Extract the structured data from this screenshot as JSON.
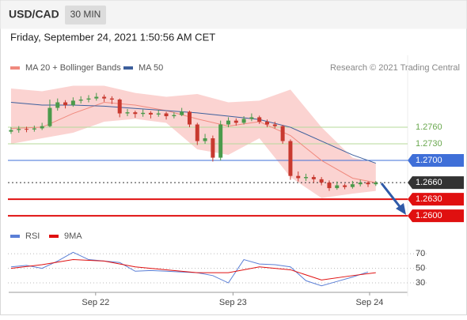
{
  "header": {
    "symbol": "USD/CAD",
    "interval": "30 MIN",
    "datetime": "Friday, September 24, 2021 1:50:56 AM CET"
  },
  "chart_data": [
    {
      "type": "candlestick",
      "legend": [
        "MA 20 + Bollinger Bands",
        "MA 50"
      ],
      "credit": "Research © 2021 Trading Central",
      "xlim": [
        -0.4,
        51.1
      ],
      "xticks": [
        {
          "value": 10.9,
          "label": "Sep 22"
        },
        {
          "value": 28.6,
          "label": "Sep 23"
        },
        {
          "value": 46.2,
          "label": "Sep 24"
        }
      ],
      "ylim": [
        1.2583,
        1.289
      ],
      "up_color": "#4b9a4b",
      "down_color": "#c8392f",
      "ohlc": [
        [
          1.2752,
          1.276,
          1.2748,
          1.2755
        ],
        [
          1.2755,
          1.2762,
          1.275,
          1.2757
        ],
        [
          1.2757,
          1.2761,
          1.2751,
          1.2756
        ],
        [
          1.2756,
          1.2763,
          1.2752,
          1.2758
        ],
        [
          1.2758,
          1.2768,
          1.2755,
          1.2762
        ],
        [
          1.2762,
          1.281,
          1.276,
          1.2795
        ],
        [
          1.2795,
          1.2812,
          1.279,
          1.2805
        ],
        [
          1.2805,
          1.2809,
          1.2794,
          1.28
        ],
        [
          1.28,
          1.2814,
          1.2797,
          1.2808
        ],
        [
          1.2808,
          1.2816,
          1.2803,
          1.281
        ],
        [
          1.281,
          1.2818,
          1.2805,
          1.2812
        ],
        [
          1.2812,
          1.2822,
          1.2808,
          1.2815
        ],
        [
          1.2815,
          1.2819,
          1.2806,
          1.2812
        ],
        [
          1.2812,
          1.2816,
          1.2802,
          1.281
        ],
        [
          1.281,
          1.2812,
          1.2778,
          1.2785
        ],
        [
          1.2785,
          1.2793,
          1.278,
          1.2787
        ],
        [
          1.2787,
          1.279,
          1.2777,
          1.2784
        ],
        [
          1.2784,
          1.2792,
          1.2779,
          1.2786
        ],
        [
          1.2786,
          1.2789,
          1.2776,
          1.2783
        ],
        [
          1.2783,
          1.2791,
          1.2779,
          1.2785
        ],
        [
          1.2785,
          1.2788,
          1.2774,
          1.278
        ],
        [
          1.278,
          1.2787,
          1.2776,
          1.2782
        ],
        [
          1.2782,
          1.2795,
          1.278,
          1.2788
        ],
        [
          1.2788,
          1.279,
          1.276,
          1.2765
        ],
        [
          1.2765,
          1.2768,
          1.2728,
          1.2735
        ],
        [
          1.2735,
          1.2748,
          1.273,
          1.274
        ],
        [
          1.274,
          1.2745,
          1.2698,
          1.2705
        ],
        [
          1.2705,
          1.2772,
          1.27,
          1.2765
        ],
        [
          1.2765,
          1.2778,
          1.276,
          1.2772
        ],
        [
          1.2772,
          1.2776,
          1.2763,
          1.2768
        ],
        [
          1.2768,
          1.278,
          1.2765,
          1.2775
        ],
        [
          1.2775,
          1.2785,
          1.2771,
          1.2778
        ],
        [
          1.2778,
          1.2781,
          1.2766,
          1.277
        ],
        [
          1.277,
          1.2774,
          1.276,
          1.2765
        ],
        [
          1.2765,
          1.277,
          1.2758,
          1.2762
        ],
        [
          1.2762,
          1.2764,
          1.273,
          1.2735
        ],
        [
          1.2735,
          1.2738,
          1.2665,
          1.2672
        ],
        [
          1.2672,
          1.268,
          1.2662,
          1.2668
        ],
        [
          1.2668,
          1.2676,
          1.2663,
          1.267
        ],
        [
          1.267,
          1.2674,
          1.266,
          1.2666
        ],
        [
          1.2666,
          1.267,
          1.2655,
          1.266
        ],
        [
          1.266,
          1.2664,
          1.2645,
          1.265
        ],
        [
          1.265,
          1.2662,
          1.2647,
          1.2655
        ],
        [
          1.2655,
          1.2658,
          1.2648,
          1.2652
        ],
        [
          1.2652,
          1.2663,
          1.2649,
          1.2657
        ],
        [
          1.2657,
          1.2665,
          1.2653,
          1.266
        ],
        [
          1.266,
          1.2662,
          1.2652,
          1.2657
        ],
        [
          1.2657,
          1.2663,
          1.2654,
          1.266
        ]
      ],
      "band_x": [
        0,
        4,
        8,
        12,
        16,
        20,
        24,
        28,
        32,
        36,
        40,
        44,
        47
      ],
      "band_upper": [
        1.283,
        1.2825,
        1.2835,
        1.2835,
        1.2822,
        1.2815,
        1.282,
        1.2805,
        1.2808,
        1.2828,
        1.276,
        1.2705,
        1.2695
      ],
      "band_lower": [
        1.273,
        1.274,
        1.275,
        1.277,
        1.2775,
        1.2768,
        1.272,
        1.271,
        1.274,
        1.267,
        1.2632,
        1.264,
        1.2645
      ],
      "band_color": "#fbd3d1",
      "series": [
        {
          "name": "MA 20",
          "color": "#f08a7e",
          "x": [
            0,
            4,
            8,
            12,
            16,
            20,
            24,
            28,
            32,
            36,
            40,
            44,
            47
          ],
          "values": [
            1.2758,
            1.276,
            1.2785,
            1.2805,
            1.28,
            1.279,
            1.2775,
            1.2762,
            1.277,
            1.2745,
            1.27,
            1.2668,
            1.266
          ]
        },
        {
          "name": "MA 50",
          "color": "#3d5f9c",
          "x": [
            0,
            4,
            8,
            12,
            16,
            20,
            24,
            28,
            32,
            36,
            40,
            44,
            47
          ],
          "values": [
            1.2805,
            1.28,
            1.28,
            1.2798,
            1.2794,
            1.279,
            1.2786,
            1.278,
            1.2774,
            1.276,
            1.2735,
            1.271,
            1.2695
          ]
        }
      ],
      "levels": [
        {
          "value": 1.276,
          "label": "1.2760",
          "color": "#b5d89a",
          "text_color": "#6aa84f",
          "box": false
        },
        {
          "value": 1.273,
          "label": "1.2730",
          "color": "#b5d89a",
          "text_color": "#6aa84f",
          "box": false
        },
        {
          "value": 1.27,
          "label": "1.2700",
          "color": "#3f6fd8",
          "text_color": "#ffffff",
          "box": true
        },
        {
          "value": 1.266,
          "label": "1.2660",
          "color": "#333333",
          "text_color": "#ffffff",
          "box": true,
          "dotted": true
        },
        {
          "value": 1.263,
          "label": "1.2630",
          "color": "#e01010",
          "text_color": "#ffffff",
          "box": true
        },
        {
          "value": 1.26,
          "label": "1.2600",
          "color": "#e01010",
          "text_color": "#ffffff",
          "box": true
        }
      ]
    },
    {
      "type": "line",
      "xlim": [
        -0.4,
        51.1
      ],
      "ylim": [
        17,
        93
      ],
      "yticks": [
        70,
        50,
        30
      ],
      "series": [
        {
          "name": "RSI",
          "color": "#5b7fd6",
          "x": [
            0,
            2,
            4,
            6,
            8,
            10,
            12,
            14,
            16,
            18,
            20,
            22,
            24,
            26,
            28,
            30,
            32,
            34,
            36,
            38,
            40,
            42,
            44,
            46
          ],
          "values": [
            52,
            54,
            50,
            60,
            72,
            62,
            60,
            58,
            46,
            47,
            46,
            45,
            44,
            40,
            30,
            62,
            56,
            55,
            52,
            33,
            26,
            32,
            38,
            45
          ]
        },
        {
          "name": "9MA",
          "color": "#e01010",
          "x": [
            0,
            4,
            8,
            12,
            16,
            20,
            24,
            28,
            32,
            36,
            40,
            44,
            47
          ],
          "values": [
            50,
            55,
            62,
            60,
            52,
            48,
            44,
            44,
            52,
            48,
            34,
            40,
            44
          ]
        }
      ]
    }
  ]
}
